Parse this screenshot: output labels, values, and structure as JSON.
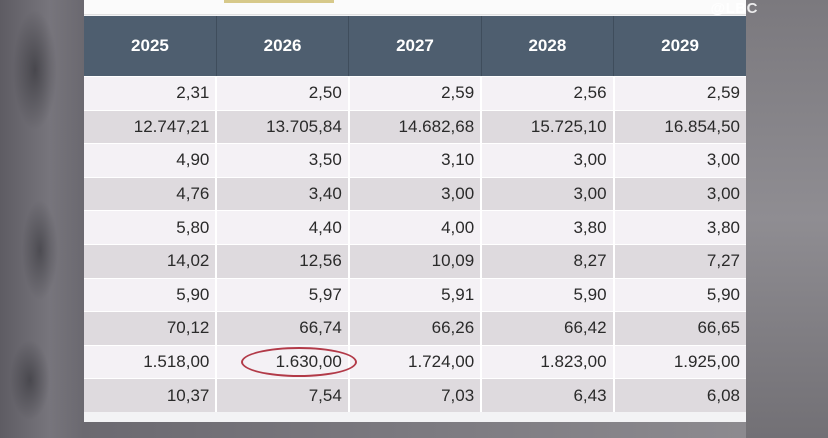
{
  "watermark": "@LBC",
  "table": {
    "headers": [
      "2025",
      "2026",
      "2027",
      "2028",
      "2029"
    ],
    "rows": [
      [
        "2,31",
        "2,50",
        "2,59",
        "2,56",
        "2,59"
      ],
      [
        "12.747,21",
        "13.705,84",
        "14.682,68",
        "15.725,10",
        "16.854,50"
      ],
      [
        "4,90",
        "3,50",
        "3,10",
        "3,00",
        "3,00"
      ],
      [
        "4,76",
        "3,40",
        "3,00",
        "3,00",
        "3,00"
      ],
      [
        "5,80",
        "4,40",
        "4,00",
        "3,80",
        "3,80"
      ],
      [
        "14,02",
        "12,56",
        "10,09",
        "8,27",
        "7,27"
      ],
      [
        "5,90",
        "5,97",
        "5,91",
        "5,90",
        "5,90"
      ],
      [
        "70,12",
        "66,74",
        "66,26",
        "66,42",
        "66,65"
      ],
      [
        "1.518,00",
        "1.630,00",
        "1.724,00",
        "1.823,00",
        "1.925,00"
      ],
      [
        "10,37",
        "7,54",
        "7,03",
        "6,43",
        "6,08"
      ]
    ]
  },
  "colors": {
    "header_bg": "#4e5e6f",
    "row_light": "#f4f1f5",
    "row_dark": "#dedade",
    "highlight_ring": "#b23a48"
  }
}
